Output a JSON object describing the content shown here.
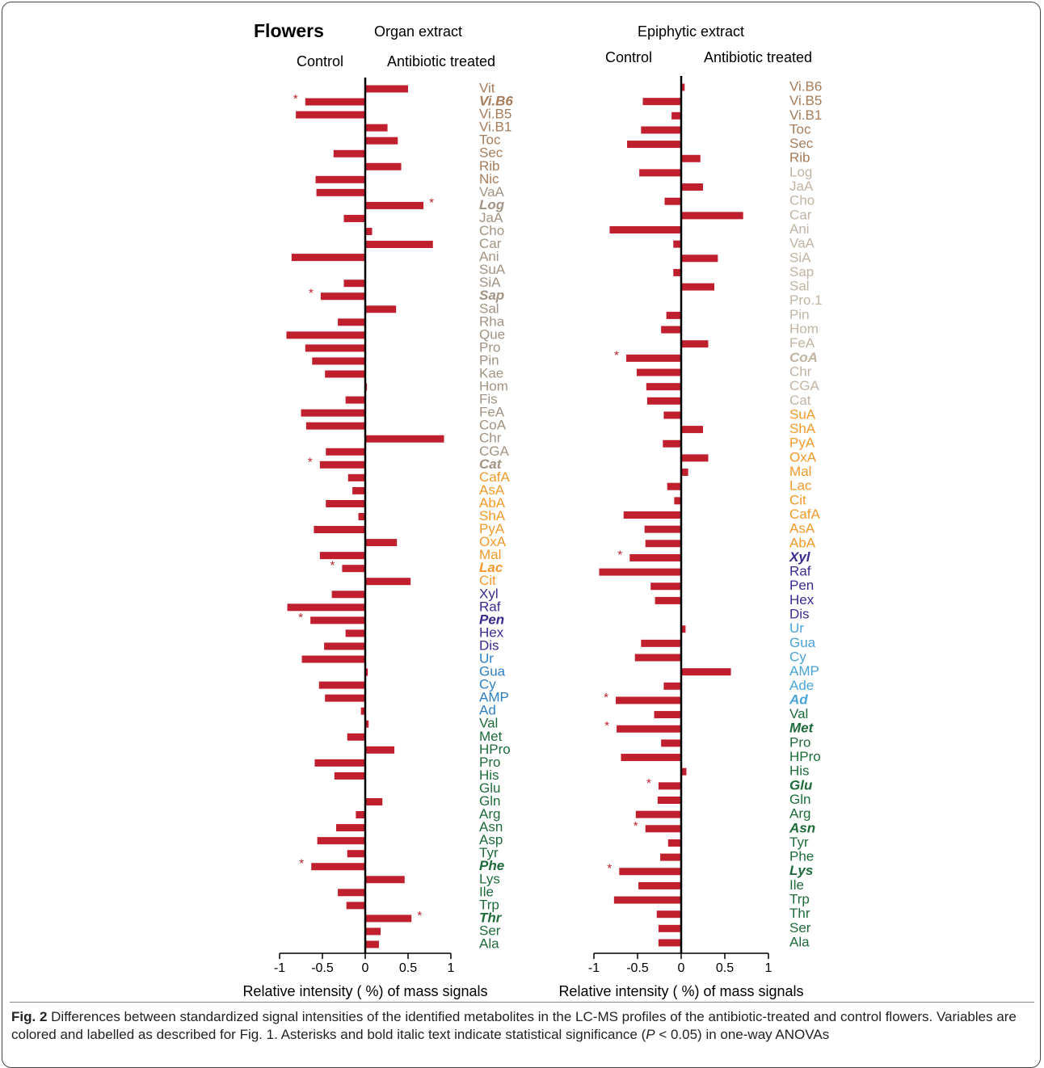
{
  "figure_title": "Flowers",
  "chart_data": [
    {
      "type": "bar",
      "orientation": "horizontal",
      "title": "Organ extract",
      "left_label": "Control",
      "right_label": "Antibiotic treated",
      "xlabel": "Relative intensity ( %) of mass signals",
      "color": "#c0202e",
      "xlim": [
        -1,
        1
      ],
      "xticks": [
        -1,
        -0.5,
        0,
        0.5,
        1
      ],
      "significance_marker": "*",
      "categories": [
        "Vit",
        "Vi.B6",
        "Vi.B5",
        "Vi.B1",
        "Toc",
        "Sec",
        "Rib",
        "Nic",
        "VaA",
        "Log",
        "JaA",
        "Cho",
        "Car",
        "Ani",
        "SuA",
        "SiA",
        "Sap",
        "Sal",
        "Rha",
        "Que",
        "Pro",
        "Pin",
        "Kae",
        "Hom",
        "Fis",
        "FeA",
        "CoA",
        "Chr",
        "CGA",
        "Cat",
        "CafA",
        "AsA",
        "AbA",
        "ShA",
        "PyA",
        "OxA",
        "Mal",
        "Lac",
        "Cit",
        "Xyl",
        "Raf",
        "Pen",
        "Hex",
        "Dis",
        "Ur",
        "Gua",
        "Cy",
        "AMP",
        "Ad",
        "Val",
        "Met",
        "HPro",
        "Pro",
        "His",
        "Glu",
        "Gln",
        "Arg",
        "Asn",
        "Asp",
        "Tyr",
        "Phe",
        "Lys",
        "Ile",
        "Trp",
        "Thr",
        "Ser",
        "Ala"
      ],
      "values": [
        0.5,
        -0.7,
        -0.81,
        0.26,
        0.38,
        -0.37,
        0.42,
        -0.58,
        -0.57,
        0.68,
        -0.25,
        0.08,
        0.79,
        -0.86,
        0,
        -0.25,
        -0.52,
        0.36,
        -0.32,
        -0.92,
        -0.7,
        -0.62,
        -0.47,
        0.02,
        -0.23,
        -0.75,
        -0.69,
        0.92,
        -0.46,
        -0.53,
        -0.2,
        -0.15,
        -0.46,
        -0.08,
        -0.6,
        0.37,
        -0.53,
        -0.27,
        0.53,
        -0.39,
        -0.91,
        -0.64,
        -0.23,
        -0.48,
        -0.74,
        0.03,
        -0.54,
        -0.47,
        -0.05,
        0.04,
        -0.21,
        0.34,
        -0.59,
        -0.36,
        0,
        0.2,
        -0.11,
        -0.34,
        -0.56,
        -0.21,
        -0.63,
        0.46,
        -0.32,
        -0.22,
        0.54,
        0.18,
        0.16
      ],
      "significant": [
        false,
        true,
        false,
        false,
        false,
        false,
        false,
        false,
        false,
        true,
        false,
        false,
        false,
        false,
        false,
        false,
        true,
        false,
        false,
        false,
        false,
        false,
        false,
        false,
        false,
        false,
        false,
        false,
        false,
        true,
        false,
        false,
        false,
        false,
        false,
        false,
        false,
        true,
        false,
        false,
        false,
        true,
        false,
        false,
        false,
        false,
        false,
        false,
        false,
        false,
        false,
        false,
        false,
        false,
        false,
        false,
        false,
        false,
        false,
        false,
        true,
        false,
        false,
        false,
        true,
        false,
        false
      ],
      "label_colors": [
        "#a67c5b",
        "#a67c5b",
        "#a67c5b",
        "#a67c5b",
        "#a67c5b",
        "#a67c5b",
        "#a67c5b",
        "#a67c5b",
        "#a39382",
        "#a39382",
        "#a39382",
        "#a39382",
        "#a39382",
        "#a39382",
        "#a39382",
        "#a39382",
        "#a39382",
        "#a39382",
        "#a39382",
        "#a39382",
        "#a39382",
        "#a39382",
        "#a39382",
        "#a39382",
        "#a39382",
        "#a39382",
        "#a39382",
        "#a39382",
        "#a39382",
        "#a39382",
        "#f39a2b",
        "#f39a2b",
        "#f39a2b",
        "#f39a2b",
        "#f39a2b",
        "#f39a2b",
        "#f39a2b",
        "#f39a2b",
        "#f39a2b",
        "#3b2a8f",
        "#3b2a8f",
        "#3b2a8f",
        "#3b2a8f",
        "#3b2a8f",
        "#2f7fc1",
        "#2f7fc1",
        "#2f7fc1",
        "#2f7fc1",
        "#2f7fc1",
        "#1e6b3a",
        "#1e6b3a",
        "#1e6b3a",
        "#1e6b3a",
        "#1e6b3a",
        "#1e6b3a",
        "#1e6b3a",
        "#1e6b3a",
        "#1e6b3a",
        "#1e6b3a",
        "#1e6b3a",
        "#1e6b3a",
        "#1e6b3a",
        "#1e6b3a",
        "#1e6b3a",
        "#1e6b3a",
        "#1e6b3a",
        "#1e6b3a"
      ]
    },
    {
      "type": "bar",
      "orientation": "horizontal",
      "title": "Epiphytic extract",
      "left_label": "Control",
      "right_label": "Antibiotic treated",
      "xlabel": "Relative intensity ( %) of mass signals",
      "color": "#c0202e",
      "xlim": [
        -1,
        1
      ],
      "xticks": [
        -1,
        -0.5,
        0,
        0.5,
        1
      ],
      "significance_marker": "*",
      "categories": [
        "Vi.B6",
        "Vi.B5",
        "Vi.B1",
        "Toc",
        "Sec",
        "Rib",
        "Log",
        "JaA",
        "Cho",
        "Car",
        "Ani",
        "VaA",
        "SiA",
        "Sap",
        "Sal",
        "Pro.1",
        "Pin",
        "Hom",
        "FeA",
        "CoA",
        "Chr",
        "CGA",
        "Cat",
        "SuA",
        "ShA",
        "PyA",
        "OxA",
        "Mal",
        "Lac",
        "Cit",
        "CafA",
        "AsA",
        "AbA",
        "Xyl",
        "Raf",
        "Pen",
        "Hex",
        "Dis",
        "Ur",
        "Gua",
        "Cy",
        "AMP",
        "Ade",
        "Ad",
        "Val",
        "Met",
        "Pro",
        "HPro",
        "His",
        "Glu",
        "Gln",
        "Arg",
        "Asn",
        "Tyr",
        "Phe",
        "Lys",
        "Ile",
        "Trp",
        "Thr",
        "Ser",
        "Ala"
      ],
      "values": [
        0.04,
        -0.44,
        -0.11,
        -0.46,
        -0.62,
        0.22,
        -0.48,
        0.25,
        -0.19,
        0.71,
        -0.82,
        -0.09,
        0.42,
        -0.09,
        0.38,
        0,
        -0.17,
        -0.23,
        0.31,
        -0.63,
        -0.51,
        -0.4,
        -0.39,
        -0.2,
        0.25,
        -0.21,
        0.31,
        0.08,
        -0.16,
        -0.08,
        -0.66,
        -0.42,
        -0.41,
        -0.59,
        -0.94,
        -0.35,
        -0.3,
        0,
        0.05,
        -0.46,
        -0.53,
        0.57,
        -0.2,
        -0.75,
        -0.31,
        -0.74,
        -0.23,
        -0.69,
        0.06,
        -0.26,
        -0.27,
        -0.52,
        -0.41,
        -0.15,
        -0.24,
        -0.71,
        -0.49,
        -0.77,
        -0.28,
        -0.26,
        -0.26
      ],
      "significant": [
        false,
        false,
        false,
        false,
        false,
        false,
        false,
        false,
        false,
        false,
        false,
        false,
        false,
        false,
        false,
        false,
        false,
        false,
        false,
        true,
        false,
        false,
        false,
        false,
        false,
        false,
        false,
        false,
        false,
        false,
        false,
        false,
        false,
        true,
        false,
        false,
        false,
        false,
        false,
        false,
        false,
        false,
        false,
        true,
        false,
        true,
        false,
        false,
        false,
        true,
        false,
        false,
        true,
        false,
        false,
        true,
        false,
        false,
        false,
        false,
        false
      ],
      "label_colors": [
        "#a67c5b",
        "#a67c5b",
        "#a67c5b",
        "#a67c5b",
        "#a67c5b",
        "#a67c5b",
        "#c2b4a3",
        "#c2b4a3",
        "#c2b4a3",
        "#c2b4a3",
        "#c2b4a3",
        "#c2b4a3",
        "#c2b4a3",
        "#c2b4a3",
        "#c2b4a3",
        "#c2b4a3",
        "#c2b4a3",
        "#c2b4a3",
        "#c2b4a3",
        "#c2b4a3",
        "#c2b4a3",
        "#c2b4a3",
        "#c2b4a3",
        "#f39a2b",
        "#f39a2b",
        "#f39a2b",
        "#f39a2b",
        "#f39a2b",
        "#f39a2b",
        "#f39a2b",
        "#f39a2b",
        "#f39a2b",
        "#f39a2b",
        "#3b2a8f",
        "#3b2a8f",
        "#3b2a8f",
        "#3b2a8f",
        "#3b2a8f",
        "#4aa3d8",
        "#4aa3d8",
        "#4aa3d8",
        "#4aa3d8",
        "#4aa3d8",
        "#4aa3d8",
        "#1e6b3a",
        "#1e6b3a",
        "#1e6b3a",
        "#1e6b3a",
        "#1e6b3a",
        "#1e6b3a",
        "#1e6b3a",
        "#1e6b3a",
        "#1e6b3a",
        "#1e6b3a",
        "#1e6b3a",
        "#1e6b3a",
        "#1e6b3a",
        "#1e6b3a",
        "#1e6b3a",
        "#1e6b3a",
        "#1e6b3a"
      ]
    }
  ],
  "caption": {
    "label": "Fig. 2",
    "text": "Differences between standardized signal intensities of the identified metabolites in the LC-MS profiles of the antibiotic-treated and control flowers. Variables are colored and labelled as described for Fig. 1. Asterisks and bold italic text indicate statistical significance (",
    "italic": "P",
    "text_end": " < 0.05) in one-way ANOVAs"
  }
}
